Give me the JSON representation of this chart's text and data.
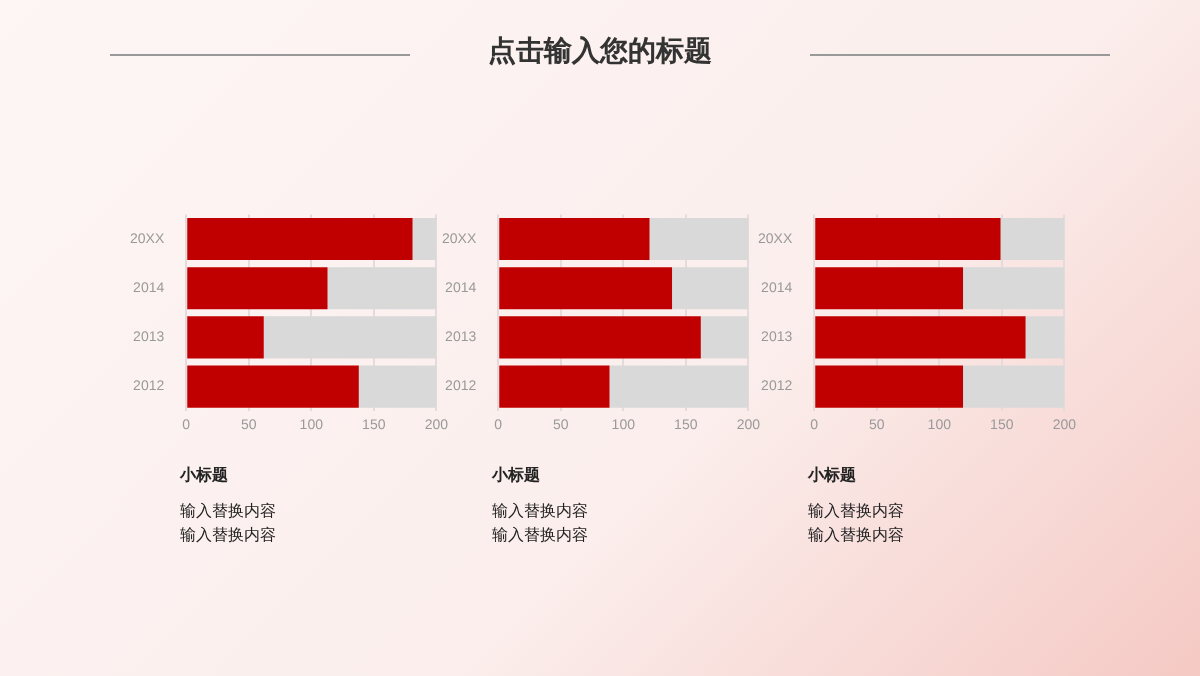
{
  "chart_data": [
    {
      "type": "other",
      "title": "点击输入您的标题"
    },
    {
      "type": "bar",
      "orientation": "horizontal",
      "stacked": true,
      "categories": [
        "20XX",
        "2014",
        "2013",
        "2012"
      ],
      "series": [
        {
          "color": "#c00000",
          "values": [
            181,
            113,
            62,
            138
          ]
        },
        {
          "color": "#d9d9d9",
          "values": [
            19,
            87,
            138,
            62
          ]
        }
      ],
      "xlim": [
        0,
        200
      ],
      "xticks": [
        0,
        50,
        100,
        150,
        200
      ],
      "grid": "x",
      "legend": false,
      "annotations": [
        "小标题",
        "输入替换内容",
        "输入替换内容"
      ]
    },
    {
      "type": "bar",
      "orientation": "horizontal",
      "stacked": true,
      "categories": [
        "20XX",
        "2014",
        "2013",
        "2012"
      ],
      "series": [
        {
          "color": "#c00000",
          "values": [
            121,
            139,
            162,
            89
          ]
        },
        {
          "color": "#d9d9d9",
          "values": [
            79,
            61,
            38,
            111
          ]
        }
      ],
      "xlim": [
        0,
        200
      ],
      "xticks": [
        0,
        50,
        100,
        150,
        200
      ],
      "grid": "x",
      "legend": false,
      "annotations": [
        "小标题",
        "输入替换内容",
        "输入替换内容"
      ]
    },
    {
      "type": "bar",
      "orientation": "horizontal",
      "stacked": true,
      "categories": [
        "20XX",
        "2014",
        "2013",
        "2012"
      ],
      "series": [
        {
          "color": "#c00000",
          "values": [
            149,
            119,
            169,
            119
          ]
        },
        {
          "color": "#d9d9d9",
          "values": [
            51,
            81,
            31,
            81
          ]
        }
      ],
      "xlim": [
        0,
        200
      ],
      "xticks": [
        0,
        50,
        100,
        150,
        200
      ],
      "grid": "x",
      "legend": false,
      "annotations": [
        "小标题",
        "输入替换内容",
        "输入替换内容"
      ]
    }
  ]
}
